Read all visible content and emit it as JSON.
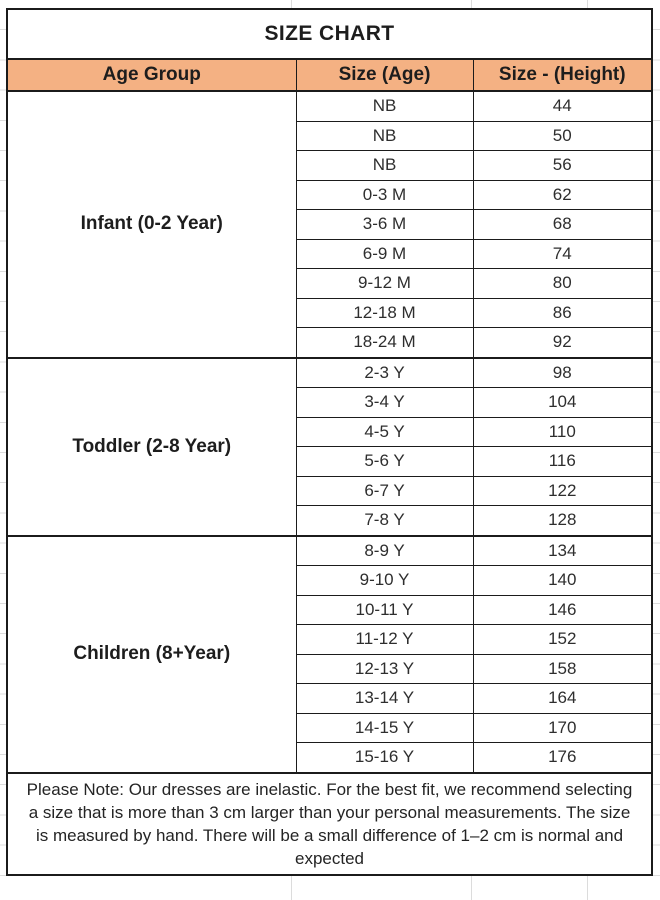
{
  "chart_data": {
    "type": "table",
    "title": "SIZE CHART",
    "columns": [
      "Age Group",
      "Size (Age)",
      "Size - (Height)"
    ],
    "groups": [
      {
        "age_group": "Infant (0-2 Year)",
        "rows": [
          {
            "size_age": "NB",
            "height": "44"
          },
          {
            "size_age": "NB",
            "height": "50"
          },
          {
            "size_age": "NB",
            "height": "56"
          },
          {
            "size_age": "0-3 M",
            "height": "62"
          },
          {
            "size_age": "3-6 M",
            "height": "68"
          },
          {
            "size_age": "6-9 M",
            "height": "74"
          },
          {
            "size_age": "9-12 M",
            "height": "80"
          },
          {
            "size_age": "12-18 M",
            "height": "86"
          },
          {
            "size_age": "18-24 M",
            "height": "92"
          }
        ]
      },
      {
        "age_group": "Toddler (2-8 Year)",
        "rows": [
          {
            "size_age": "2-3 Y",
            "height": "98"
          },
          {
            "size_age": "3-4 Y",
            "height": "104"
          },
          {
            "size_age": "4-5 Y",
            "height": "110"
          },
          {
            "size_age": "5-6 Y",
            "height": "116"
          },
          {
            "size_age": "6-7 Y",
            "height": "122"
          },
          {
            "size_age": "7-8 Y",
            "height": "128"
          }
        ]
      },
      {
        "age_group": "Children (8+Year)",
        "rows": [
          {
            "size_age": "8-9 Y",
            "height": "134"
          },
          {
            "size_age": "9-10 Y",
            "height": "140"
          },
          {
            "size_age": "10-11 Y",
            "height": "146"
          },
          {
            "size_age": "11-12 Y",
            "height": "152"
          },
          {
            "size_age": "12-13 Y",
            "height": "158"
          },
          {
            "size_age": "13-14 Y",
            "height": "164"
          },
          {
            "size_age": "14-15 Y",
            "height": "170"
          },
          {
            "size_age": "15-16 Y",
            "height": "176"
          }
        ]
      }
    ],
    "note": "Please Note: Our dresses are inelastic. For the best fit, we recommend selecting a size that is more than 3 cm larger than your personal measurements. The size is measured by hand. There will be a small difference of 1–2 cm is normal and expected",
    "layout_hints": {
      "legend": "none",
      "grid": "table borders on, faint spreadsheet gridlines outside table"
    },
    "colors": {
      "header_bg": "#F4B183",
      "border": "#1B1B1B",
      "text": "#1D1D1D",
      "outer_gridline": "#DCDCDC"
    }
  }
}
